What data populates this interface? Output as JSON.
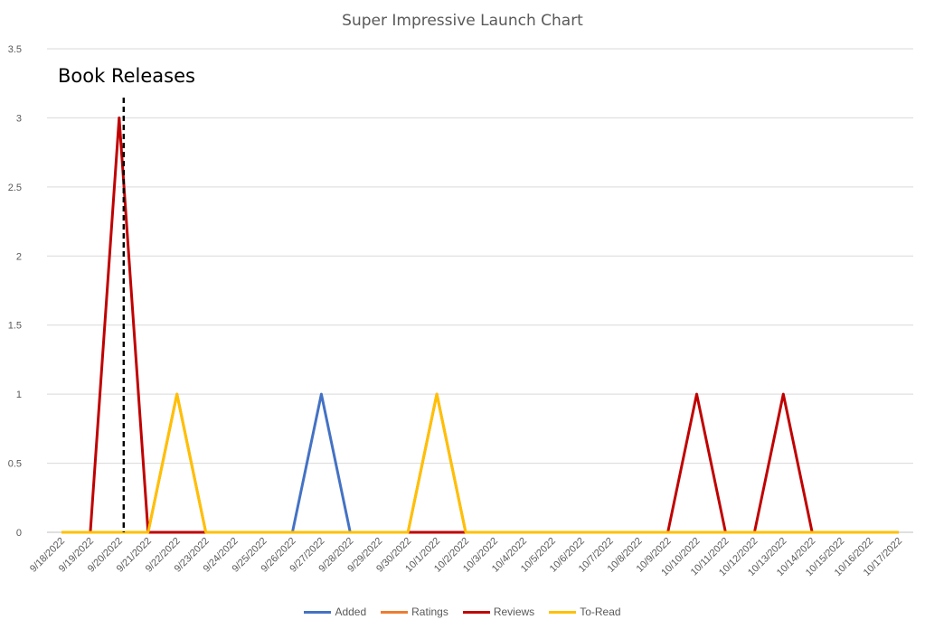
{
  "chart_data": {
    "type": "line",
    "title": "Super Impressive Launch Chart",
    "annotation": "Book Releases",
    "annotation_date": "9/20/2022",
    "xlabel": "",
    "ylabel": "",
    "ylim": [
      0,
      3.5
    ],
    "yticks": [
      "0",
      "0.5",
      "1",
      "1.5",
      "2",
      "2.5",
      "3",
      "3.5"
    ],
    "categories": [
      "9/18/2022",
      "9/19/2022",
      "9/20/2022",
      "9/21/2022",
      "9/22/2022",
      "9/23/2022",
      "9/24/2022",
      "9/25/2022",
      "9/26/2022",
      "9/27/2022",
      "9/28/2022",
      "9/29/2022",
      "9/30/2022",
      "10/1/2022",
      "10/2/2022",
      "10/3/2022",
      "10/4/2022",
      "10/5/2022",
      "10/6/2022",
      "10/7/2022",
      "10/8/2022",
      "10/9/2022",
      "10/10/2022",
      "10/11/2022",
      "10/12/2022",
      "10/13/2022",
      "10/14/2022",
      "10/15/2022",
      "10/16/2022",
      "10/17/2022"
    ],
    "grid": true,
    "legend_position": "bottom",
    "series": [
      {
        "name": "Added",
        "color": "#4472C4",
        "values": [
          0,
          0,
          0,
          0,
          0,
          0,
          0,
          0,
          0,
          1,
          0,
          0,
          0,
          0,
          0,
          0,
          0,
          0,
          0,
          0,
          0,
          0,
          0,
          0,
          0,
          0,
          0,
          0,
          0,
          0
        ]
      },
      {
        "name": "Ratings",
        "color": "#ED7D31",
        "values": [
          0,
          0,
          0,
          0,
          1,
          0,
          0,
          0,
          0,
          0,
          0,
          0,
          0,
          1,
          0,
          0,
          0,
          0,
          0,
          0,
          0,
          0,
          0,
          0,
          0,
          0,
          0,
          0,
          0,
          0
        ]
      },
      {
        "name": "Reviews",
        "color": "#C00000",
        "values": [
          0,
          0,
          3,
          0,
          0,
          0,
          0,
          0,
          0,
          0,
          0,
          0,
          0,
          0,
          0,
          0,
          0,
          0,
          0,
          0,
          0,
          0,
          1,
          0,
          0,
          1,
          0,
          0,
          0,
          0
        ]
      },
      {
        "name": "To-Read",
        "color": "#FFC000",
        "values": [
          0,
          0,
          0,
          0,
          1,
          0,
          0,
          0,
          0,
          0,
          0,
          0,
          0,
          1,
          0,
          0,
          0,
          0,
          0,
          0,
          0,
          0,
          0,
          0,
          0,
          0,
          0,
          0,
          0,
          0
        ]
      }
    ]
  }
}
